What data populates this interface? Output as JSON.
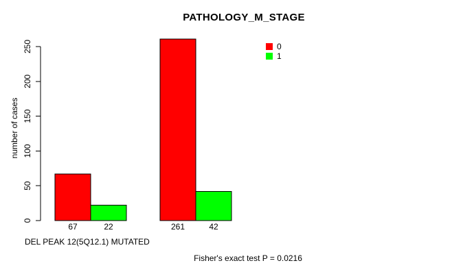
{
  "chart_data": {
    "type": "bar",
    "title": "PATHOLOGY_M_STAGE",
    "ylabel": "number of cases",
    "xlabel": "DEL PEAK 12(5Q12.1) MUTATED",
    "footnote": "Fisher's exact test P = 0.0216",
    "ylim": [
      0,
      250
    ],
    "yticks": [
      0,
      50,
      100,
      150,
      200,
      250
    ],
    "grid": false,
    "legend_position": "top-right",
    "series": [
      {
        "name": "0",
        "color": "#ff0000",
        "values": [
          67,
          261
        ]
      },
      {
        "name": "1",
        "color": "#00ff00",
        "values": [
          22,
          42
        ]
      }
    ],
    "bar_count_labels": [
      [
        "67",
        "22"
      ],
      [
        "261",
        "42"
      ]
    ],
    "legend": {
      "entries": [
        {
          "label": "0",
          "color": "#ff0000"
        },
        {
          "label": "1",
          "color": "#00ff00"
        }
      ]
    },
    "bar_border_color": "#000000",
    "axis_color": "#000000"
  }
}
